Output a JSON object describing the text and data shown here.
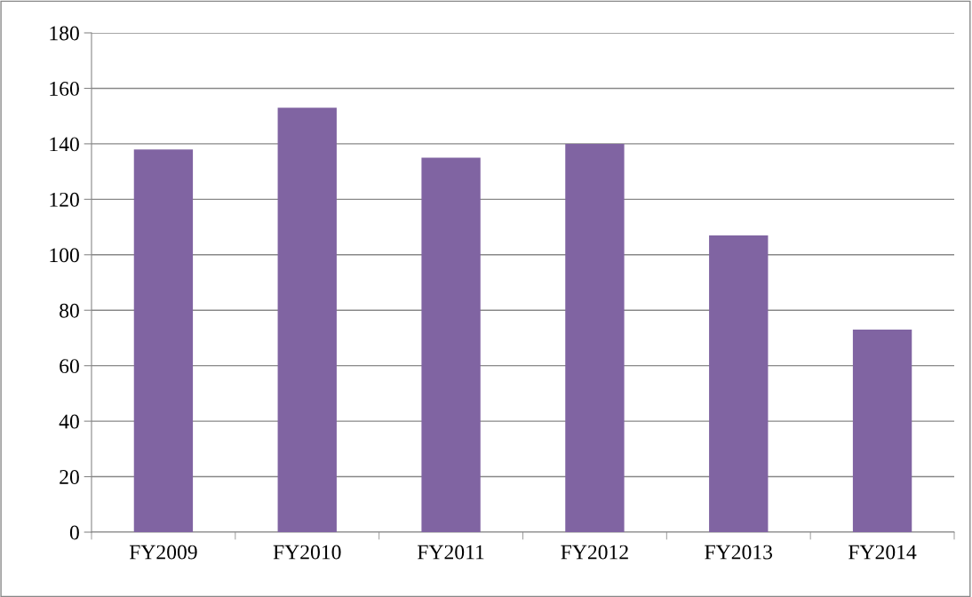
{
  "chart_data": {
    "type": "bar",
    "categories": [
      "FY2009",
      "FY2010",
      "FY2011",
      "FY2012",
      "FY2013",
      "FY2014"
    ],
    "values": [
      138,
      153,
      135,
      140,
      107,
      73
    ],
    "color": "#8064a2",
    "ylim": [
      0,
      180
    ],
    "yticks": [
      0,
      20,
      40,
      60,
      80,
      100,
      120,
      140,
      160,
      180
    ],
    "grid": "y"
  }
}
